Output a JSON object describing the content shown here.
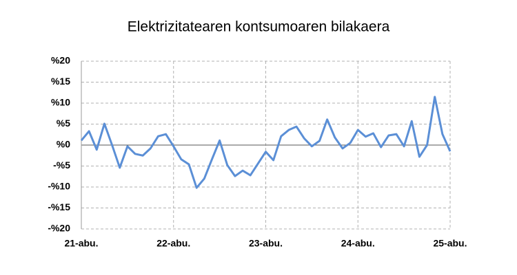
{
  "chart_data": {
    "type": "line",
    "title": "Elektrizitatearen kontsumoaren bilakaera",
    "categories": [
      "21-abu.",
      null,
      null,
      null,
      null,
      null,
      null,
      null,
      null,
      null,
      null,
      null,
      "22-abu.",
      null,
      null,
      null,
      null,
      null,
      null,
      null,
      null,
      null,
      null,
      null,
      "23-abu.",
      null,
      null,
      null,
      null,
      null,
      null,
      null,
      null,
      null,
      null,
      null,
      "24-abu.",
      null,
      null,
      null,
      null,
      null,
      null,
      null,
      null,
      null,
      null,
      null,
      "25-abu."
    ],
    "values": [
      1.1,
      3.3,
      -1.1,
      5.1,
      0,
      -5.4,
      -0.3,
      -2.1,
      -2.5,
      -0.8,
      2.1,
      2.6,
      -0.3,
      -3.4,
      -4.6,
      -10.2,
      -8.0,
      -3.4,
      1.1,
      -4.8,
      -7.4,
      -6.1,
      -7.2,
      -4.4,
      -1.6,
      -3.6,
      2.1,
      3.6,
      4.4,
      1.6,
      -0.3,
      1.0,
      6.1,
      1.8,
      -0.8,
      0.5,
      3.6,
      2.0,
      2.8,
      -0.5,
      2.3,
      2.6,
      -0.3,
      5.7,
      -2.8,
      0,
      11.5,
      2.6,
      -1.5
    ],
    "color": "#5b8fd6",
    "ylim": [
      -20,
      20
    ],
    "yticks": [
      {
        "value": -20,
        "label": "-%20"
      },
      {
        "value": -15,
        "label": "-%15"
      },
      {
        "value": -10,
        "label": "-%10"
      },
      {
        "value": -5,
        "label": "-%5"
      },
      {
        "value": 0,
        "label": "%0"
      },
      {
        "value": 5,
        "label": "%5"
      },
      {
        "value": 10,
        "label": "%10"
      },
      {
        "value": 15,
        "label": "%15"
      },
      {
        "value": 20,
        "label": "%20"
      }
    ],
    "grid": true
  }
}
